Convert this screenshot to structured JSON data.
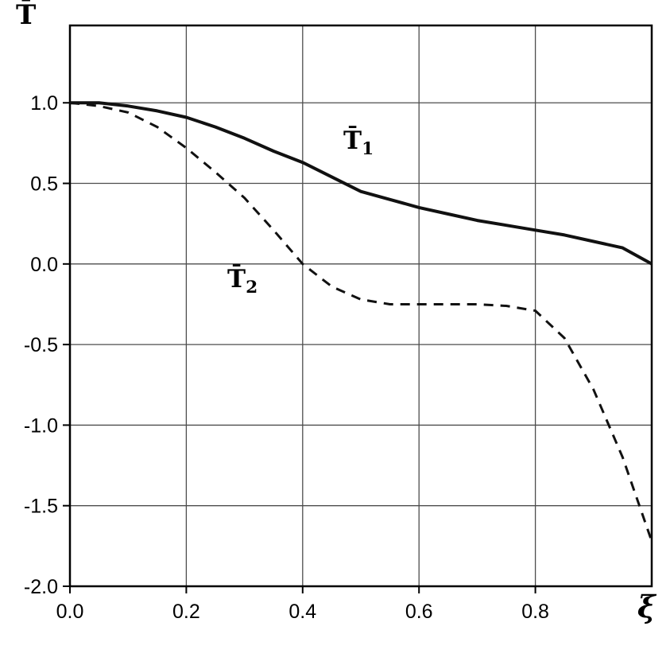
{
  "chart_data": {
    "type": "line",
    "title": "",
    "xlabel": "ξ",
    "ylabel": "T̄",
    "xlim": [
      0.0,
      1.0
    ],
    "ylim": [
      -2.0,
      1.48
    ],
    "grid": true,
    "legend_position": "inline-labels",
    "x_ticks": [
      0.0,
      0.2,
      0.4,
      0.6,
      0.8
    ],
    "x_tick_labels": [
      "0.0",
      "0.2",
      "0.4",
      "0.6",
      "0.8"
    ],
    "y_ticks": [
      1.0,
      0.5,
      0.0,
      -0.5,
      -1.0,
      -1.5,
      -2.0
    ],
    "y_tick_labels": [
      "1.0",
      "0.5",
      "0.0",
      "-0.5",
      "-1.0",
      "-1.5",
      "-2.0"
    ],
    "x_gridlines": [
      0.2,
      0.4,
      0.6,
      0.8
    ],
    "y_gridlines": [
      1.0,
      0.5,
      0.0,
      -0.5,
      -1.0,
      -1.5
    ],
    "colors": {
      "background": "#ffffff",
      "axis": "#000000",
      "grid": "#4d4d4d",
      "line": "#111111"
    },
    "x": [
      0.0,
      0.05,
      0.1,
      0.15,
      0.2,
      0.25,
      0.3,
      0.35,
      0.4,
      0.45,
      0.5,
      0.55,
      0.6,
      0.65,
      0.7,
      0.75,
      0.8,
      0.85,
      0.9,
      0.95,
      1.0
    ],
    "series": [
      {
        "name": "T̄1",
        "label_main": "T̄",
        "label_sub": "1",
        "line_style": "solid",
        "y": [
          1.0,
          1.0,
          0.98,
          0.95,
          0.91,
          0.85,
          0.78,
          0.7,
          0.63,
          0.54,
          0.45,
          0.4,
          0.35,
          0.31,
          0.27,
          0.24,
          0.21,
          0.18,
          0.14,
          0.1,
          0.0
        ]
      },
      {
        "name": "T̄2",
        "label_main": "T̄",
        "label_sub": "2",
        "line_style": "dashed",
        "y": [
          1.0,
          0.98,
          0.94,
          0.85,
          0.72,
          0.57,
          0.41,
          0.21,
          0.0,
          -0.14,
          -0.22,
          -0.25,
          -0.25,
          -0.25,
          -0.25,
          -0.26,
          -0.29,
          -0.46,
          -0.78,
          -1.2,
          -1.72
        ]
      }
    ]
  }
}
